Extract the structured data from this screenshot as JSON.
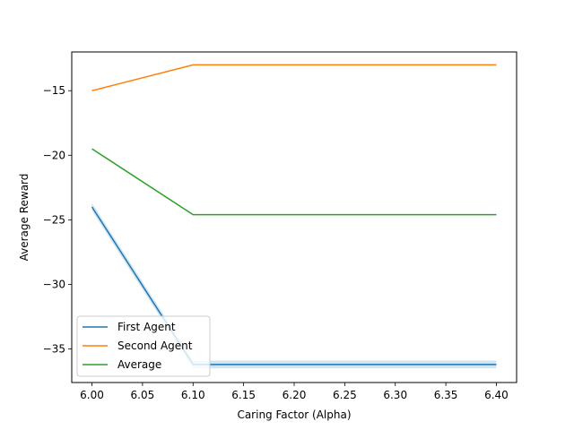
{
  "chart_data": {
    "type": "line",
    "title": "",
    "xlabel": "Caring Factor (Alpha)",
    "ylabel": "Average Reward",
    "x": [
      6.0,
      6.1,
      6.2,
      6.3,
      6.4
    ],
    "xlim": [
      5.98,
      6.42
    ],
    "ylim": [
      -37.6,
      -12.0
    ],
    "xticks": [
      6.0,
      6.05,
      6.1,
      6.15,
      6.2,
      6.25,
      6.3,
      6.35,
      6.4
    ],
    "xtick_labels": [
      "6.00",
      "6.05",
      "6.10",
      "6.15",
      "6.20",
      "6.25",
      "6.30",
      "6.35",
      "6.40"
    ],
    "yticks": [
      -35,
      -30,
      -25,
      -20,
      -15
    ],
    "ytick_labels": [
      "−35",
      "−30",
      "−25",
      "−20",
      "−15"
    ],
    "grid": false,
    "legend_position": "lower-left",
    "series": [
      {
        "name": "First Agent",
        "color": "#1f77b4",
        "values": [
          -24.0,
          -36.2,
          -36.2,
          -36.2,
          -36.2
        ],
        "band": 0.3
      },
      {
        "name": "Second Agent",
        "color": "#ff7f0e",
        "values": [
          -15.0,
          -13.0,
          -13.0,
          -13.0,
          -13.0
        ]
      },
      {
        "name": "Average",
        "color": "#2ca02c",
        "values": [
          -19.5,
          -24.6,
          -24.6,
          -24.6,
          -24.6
        ]
      }
    ]
  }
}
